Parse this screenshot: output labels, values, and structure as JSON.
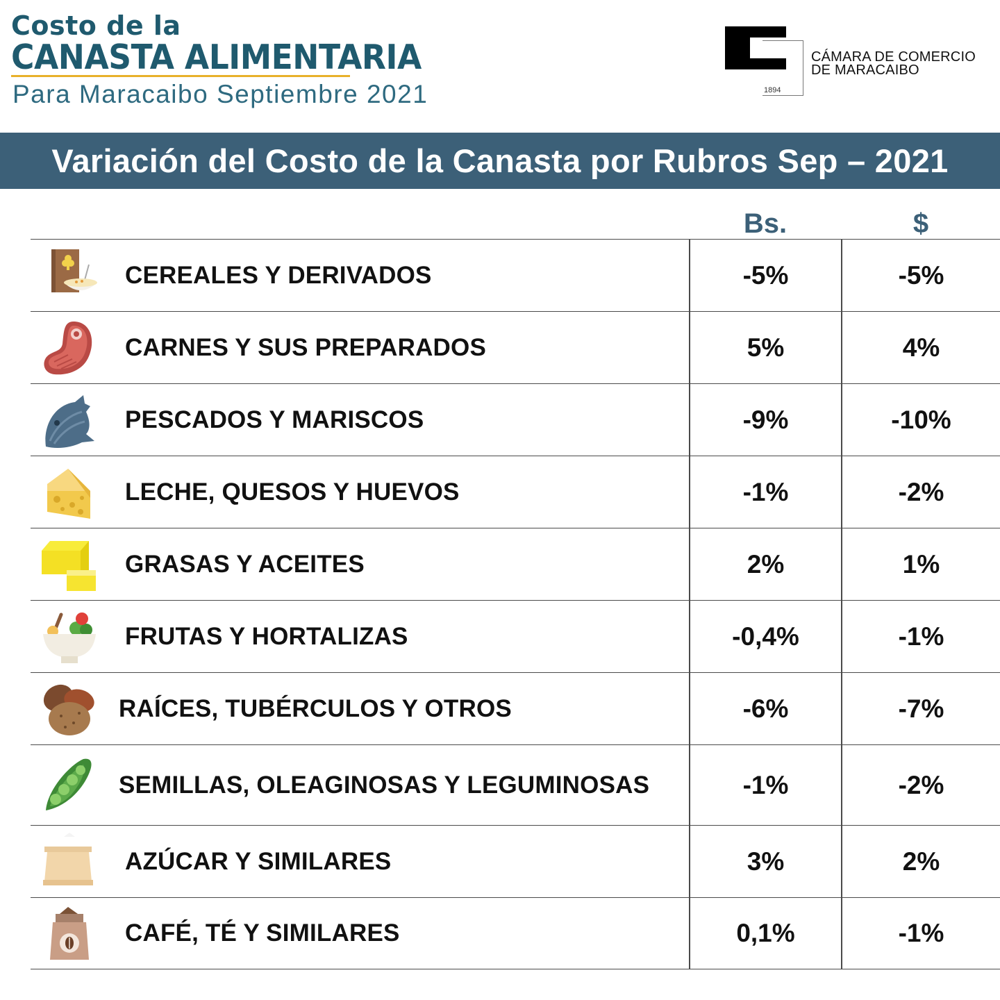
{
  "header": {
    "title_line1": "Costo de la",
    "title_line2": "CANASTA ALIMENTARIA",
    "subtitle": "Para Maracaibo Septiembre 2021"
  },
  "logo": {
    "line1": "CÁMARA DE COMERCIO",
    "line2": "DE MARACAIBO",
    "year": "1894"
  },
  "banner": {
    "title": "Variación del Costo de la Canasta por Rubros Sep – 2021"
  },
  "table": {
    "columns": [
      "Bs.",
      "$"
    ],
    "rows": [
      {
        "icon": "cereal-icon",
        "label": "CEREALES Y DERIVADOS",
        "bs": "-5%",
        "usd": "-5%"
      },
      {
        "icon": "meat-icon",
        "label": "CARNES Y SUS PREPARADOS",
        "bs": "5%",
        "usd": "4%"
      },
      {
        "icon": "fish-icon",
        "label": "PESCADOS Y MARISCOS",
        "bs": "-9%",
        "usd": "-10%"
      },
      {
        "icon": "cheese-icon",
        "label": "LECHE, QUESOS Y HUEVOS",
        "bs": "-1%",
        "usd": "-2%"
      },
      {
        "icon": "butter-icon",
        "label": "GRASAS Y ACEITES",
        "bs": "2%",
        "usd": "1%"
      },
      {
        "icon": "salad-bowl-icon",
        "label": "FRUTAS Y HORTALIZAS",
        "bs": "-0,4%",
        "usd": "-1%"
      },
      {
        "icon": "potato-icon",
        "label": "RAÍCES, TUBÉRCULOS Y OTROS",
        "bs": "-6%",
        "usd": "-7%"
      },
      {
        "icon": "pea-pod-icon",
        "label": "SEMILLAS, OLEAGINOSAS Y LEGUMINOSAS",
        "bs": "-1%",
        "usd": "-2%"
      },
      {
        "icon": "sugar-sack-icon",
        "label": "AZÚCAR Y SIMILARES",
        "bs": "3%",
        "usd": "2%"
      },
      {
        "icon": "coffee-bag-icon",
        "label": "CAFÉ, TÉ Y SIMILARES",
        "bs": "0,1%",
        "usd": "-1%"
      }
    ]
  },
  "colors": {
    "banner": "#3c6078",
    "title": "#1f5a6e",
    "accent": "#e8b12a"
  }
}
